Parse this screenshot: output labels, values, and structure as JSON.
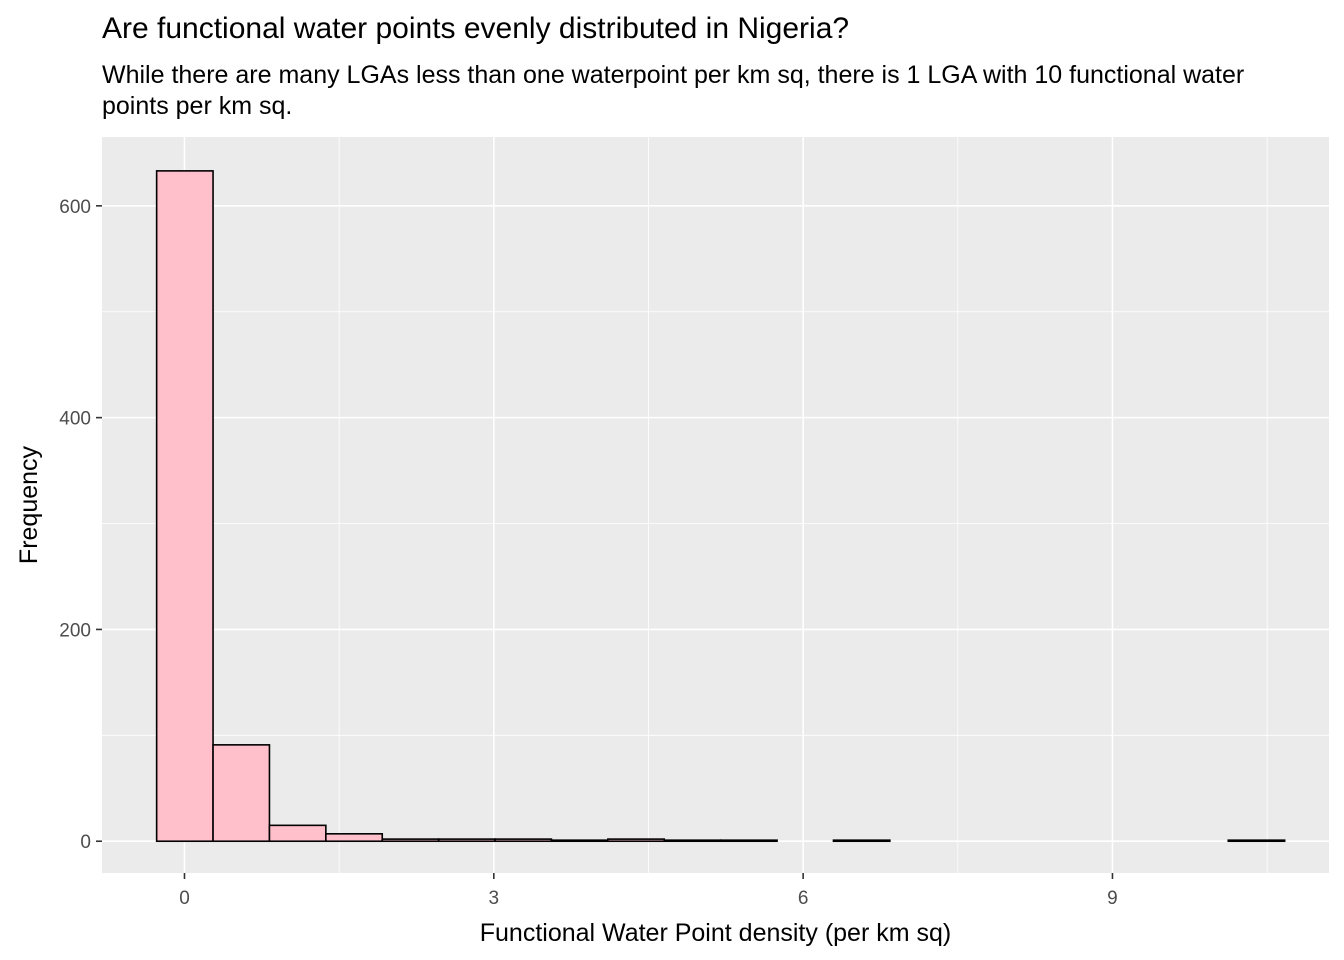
{
  "chart_data": {
    "type": "bar",
    "title": "Are functional water points evenly distributed in Nigeria?",
    "subtitle": "While there are many LGAs less than one waterpoint per km sq, there is 1 LGA with 10 functional water points per km sq.",
    "xlabel": "Functional Water Point density (per km sq)",
    "ylabel": "Frequency",
    "xlim": [
      -0.8,
      11.1
    ],
    "ylim": [
      -30,
      665
    ],
    "x_ticks": [
      0,
      3,
      6,
      9
    ],
    "x_tick_labels": [
      "0",
      "3",
      "6",
      "9"
    ],
    "y_ticks": [
      0,
      200,
      400,
      600
    ],
    "y_tick_labels": [
      "0",
      "200",
      "400",
      "600"
    ],
    "bin_width": 0.547,
    "bins": [
      {
        "start": -0.27,
        "count": 633
      },
      {
        "start": 0.277,
        "count": 91
      },
      {
        "start": 0.824,
        "count": 15
      },
      {
        "start": 1.371,
        "count": 7
      },
      {
        "start": 1.918,
        "count": 2
      },
      {
        "start": 2.465,
        "count": 2
      },
      {
        "start": 3.012,
        "count": 2
      },
      {
        "start": 3.559,
        "count": 1
      },
      {
        "start": 4.106,
        "count": 2
      },
      {
        "start": 4.653,
        "count": 1
      },
      {
        "start": 5.2,
        "count": 1
      },
      {
        "start": 5.747,
        "count": 0
      },
      {
        "start": 6.294,
        "count": 1
      },
      {
        "start": 6.841,
        "count": 0
      },
      {
        "start": 7.388,
        "count": 0
      },
      {
        "start": 7.935,
        "count": 0
      },
      {
        "start": 8.482,
        "count": 0
      },
      {
        "start": 9.029,
        "count": 0
      },
      {
        "start": 9.576,
        "count": 0
      },
      {
        "start": 10.123,
        "count": 1
      }
    ],
    "colors": {
      "panel_background": "#ebebeb",
      "grid": "#ffffff",
      "bar_fill": "#ffc0cb",
      "bar_outline": "#000000"
    },
    "grid": true,
    "legend": "none"
  }
}
